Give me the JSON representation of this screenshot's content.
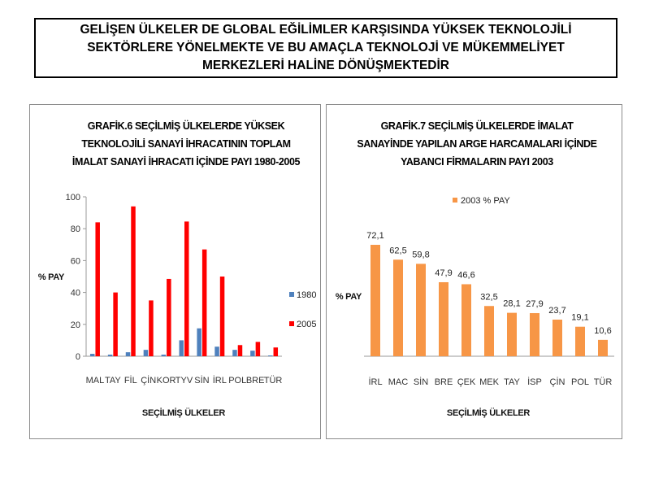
{
  "header": {
    "lines": [
      "GELİŞEN ÜLKELER DE GLOBAL EĞİLİMLER KARŞISINDA YÜKSEK TEKNOLOJİLİ",
      "SEKTÖRLERE YÖNELMEKTE VE BU AMAÇLA TEKNOLOJİ VE MÜKEMMELİYET",
      "MERKEZLERİ HALİNE DÖNÜŞMEKTEDİR"
    ]
  },
  "chart_data": [
    {
      "type": "bar",
      "title_lines": [
        "GRAFİK.6 SEÇİLMİŞ ÜLKELERDE YÜKSEK",
        "TEKNOLOJİLİ SANAYİ İHRACATININ TOPLAM",
        "İMALAT SANAYİ İHRACATI İÇİNDE PAYI 1980-2005"
      ],
      "xlabel": "SEÇİLMİŞ ÜLKELER",
      "ylabel": "% PAY",
      "ylim": [
        0,
        100
      ],
      "yticks": [
        0,
        20,
        40,
        60,
        80,
        100
      ],
      "categories": [
        "MAL",
        "TAY",
        "FİL",
        "ÇİN",
        "KOR",
        "TYV",
        "SİN",
        "İRL",
        "POL",
        "BRE",
        "TÜR"
      ],
      "series": [
        {
          "name": "1980",
          "color": "#4f81bd",
          "values": [
            1.5,
            1,
            2.5,
            4,
            1,
            10,
            17.5,
            6,
            4,
            3.5,
            0.5
          ]
        },
        {
          "name": "2005",
          "color": "#ff0000",
          "values": [
            84,
            40,
            94,
            35,
            48.5,
            84.5,
            67,
            50,
            7,
            9,
            5.5
          ]
        }
      ],
      "legend": "right",
      "grid": false
    },
    {
      "type": "bar",
      "title_lines": [
        "GRAFİK.7 SEÇİLMİŞ ÜLKELERDE İMALAT",
        "SANAYİNDE YAPILAN ARGE HARCAMALARI İÇİNDE",
        "YABANCI FİRMALARIN PAYI 2003"
      ],
      "xlabel": "SEÇİLMİŞ ÜLKELER",
      "ylabel": "% PAY",
      "categories": [
        "İRL",
        "MAC",
        "SİN",
        "BRE",
        "ÇEK",
        "MEK",
        "TAY",
        "İSP",
        "ÇİN",
        "POL",
        "TÜR"
      ],
      "series": [
        {
          "name": "2003 % PAY",
          "color": "#f79646",
          "values": [
            72.1,
            62.5,
            59.8,
            47.9,
            46.6,
            32.5,
            28.1,
            27.9,
            23.7,
            19.1,
            10.6
          ]
        }
      ],
      "data_labels": [
        "72,1",
        "62,5",
        "59,8",
        "47,9",
        "46,6",
        "32,5",
        "28,1",
        "27,9",
        "23,7",
        "19,1",
        "10,6"
      ],
      "legend": "top",
      "grid": false
    }
  ]
}
